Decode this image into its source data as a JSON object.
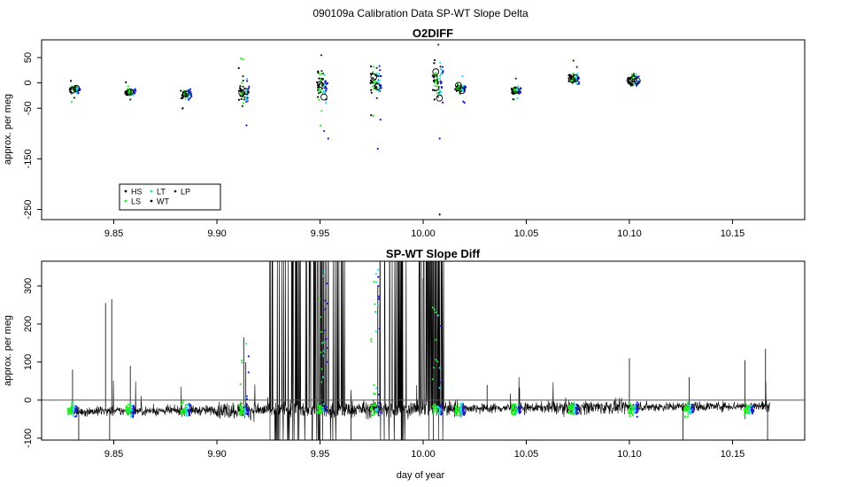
{
  "page_title": "090109a   Calibration Data SP-WT Slope Delta",
  "colors": {
    "HS": "#000000",
    "LS": "#22ee22",
    "LT": "#22dddd",
    "WT": "#1a1acc",
    "LP": "#0a3a0a",
    "line": "#000000"
  },
  "chart_data": [
    {
      "type": "scatter",
      "title": "O2DIFF",
      "ylabel": "approx. per meg",
      "xlim": [
        9.815,
        10.185
      ],
      "ylim": [
        -270,
        85
      ],
      "xticks": [
        9.85,
        9.9,
        9.95,
        10.0,
        10.05,
        10.1,
        10.15
      ],
      "xtick_labels": [
        "9.85",
        "9.90",
        "9.95",
        "10.00",
        "10.05",
        "10.10",
        "10.15"
      ],
      "yticks": [
        50,
        0,
        -50,
        -150,
        -250
      ],
      "ytick_labels": [
        "50",
        "0",
        "-50",
        "-150",
        "-250"
      ],
      "legend": {
        "position": "bottom-left",
        "entries": [
          {
            "key": "HS",
            "label": "HS"
          },
          {
            "key": "LT",
            "label": "LT"
          },
          {
            "key": "LP",
            "label": "LP"
          },
          {
            "key": "LS",
            "label": "LS"
          },
          {
            "key": "WT",
            "label": "WT"
          }
        ]
      },
      "clusters": [
        {
          "day": 9.831,
          "center": -14,
          "spread": 10,
          "circles": [
            -14,
            -11
          ]
        },
        {
          "day": 9.858,
          "center": -18,
          "spread": 8,
          "circles": [
            -18
          ]
        },
        {
          "day": 9.885,
          "center": -22,
          "spread": 12,
          "circles": [
            -22
          ]
        },
        {
          "day": 9.913,
          "center": -20,
          "spread": 30,
          "circles": [
            -20,
            -17
          ]
        },
        {
          "day": 9.951,
          "center": -5,
          "spread": 35,
          "circles": [
            -3,
            -28
          ]
        },
        {
          "day": 9.977,
          "center": 5,
          "spread": 40,
          "circles": [
            12,
            -8
          ]
        },
        {
          "day": 10.007,
          "center": 0,
          "spread": 50,
          "circles": [
            22,
            -30
          ]
        },
        {
          "day": 10.018,
          "center": -12,
          "spread": 12,
          "circles": [
            -5,
            -15
          ]
        },
        {
          "day": 10.045,
          "center": -15,
          "spread": 10,
          "circles": [
            -15
          ]
        },
        {
          "day": 10.073,
          "center": 8,
          "spread": 15,
          "circles": [
            7,
            10
          ]
        },
        {
          "day": 10.102,
          "center": 5,
          "spread": 15,
          "circles": [
            5,
            8,
            4
          ]
        }
      ]
    },
    {
      "type": "line",
      "title": "SP-WT Slope Diff",
      "ylabel": "approx. per meg",
      "xlabel": "day of year",
      "xlim": [
        9.815,
        10.185
      ],
      "ylim": [
        -105,
        365
      ],
      "xticks": [
        9.85,
        9.9,
        9.95,
        10.0,
        10.05,
        10.1,
        10.15
      ],
      "xtick_labels": [
        "9.85",
        "9.90",
        "9.95",
        "10.00",
        "10.05",
        "10.10",
        "10.15"
      ],
      "yticks": [
        300,
        200,
        100,
        0,
        -100
      ],
      "ytick_labels": [
        "300",
        "200",
        "100",
        "0",
        "-100"
      ],
      "hline": 0,
      "series": {
        "x_start": 9.828,
        "x_end": 10.168,
        "baseline_start": -30,
        "baseline_end": -15
      },
      "spikes": [
        {
          "day": 9.83,
          "value": 80
        },
        {
          "day": 9.846,
          "value": 255
        },
        {
          "day": 9.849,
          "value": 265
        },
        {
          "day": 9.858,
          "value": 90
        },
        {
          "day": 9.913,
          "value": 165
        },
        {
          "day": 9.914,
          "value": 100
        },
        {
          "day": 9.978,
          "value": 300
        },
        {
          "day": 9.979,
          "value": 250
        },
        {
          "day": 10.0,
          "value": 320
        },
        {
          "day": 10.031,
          "value": 40
        },
        {
          "day": 10.1,
          "value": 110
        },
        {
          "day": 10.129,
          "value": 60
        },
        {
          "day": 10.156,
          "value": 105
        },
        {
          "day": 10.166,
          "value": 135
        }
      ],
      "burst_ranges": [
        [
          9.925,
          9.962
        ],
        [
          9.978,
          9.992
        ],
        [
          9.998,
          10.01
        ]
      ],
      "cal_days": [
        9.83,
        9.858,
        9.885,
        9.913,
        9.951,
        9.977,
        10.007,
        10.018,
        10.045,
        10.073,
        10.102,
        10.129,
        10.158
      ]
    }
  ]
}
